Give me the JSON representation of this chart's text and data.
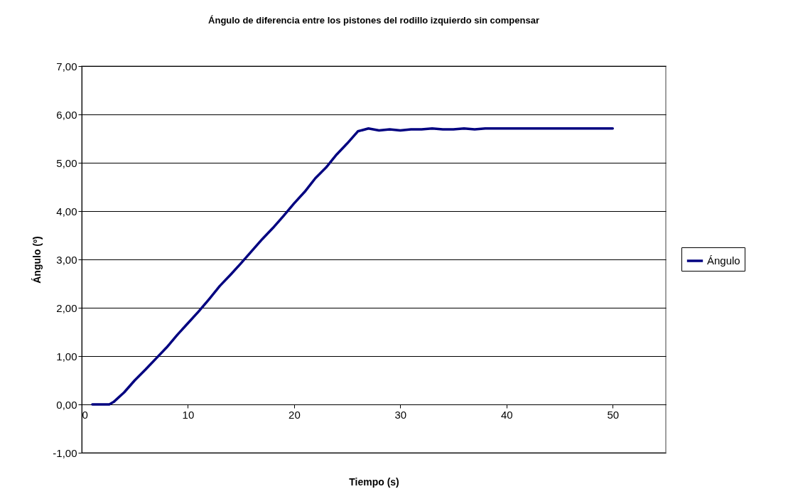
{
  "chart_data": {
    "type": "line",
    "title": "Ángulo de diferencia entre los pistones del rodillo izquierdo sin compensar",
    "xlabel": "Tiempo (s)",
    "ylabel": "Ángulo (º)",
    "x": [
      1,
      2,
      2.6,
      3,
      4,
      5,
      6,
      7,
      8,
      9,
      10,
      11,
      12,
      13,
      14,
      15,
      16,
      17,
      18,
      19,
      20,
      21,
      22,
      23,
      24,
      25,
      26,
      27,
      28,
      29,
      30,
      31,
      32,
      33,
      34,
      35,
      36,
      37,
      38,
      39,
      40,
      41,
      42,
      43,
      44,
      45,
      46,
      47,
      48,
      49,
      50
    ],
    "series": [
      {
        "name": "Ángulo",
        "color": "#000080",
        "values": [
          0,
          0,
          0,
          0.05,
          0.25,
          0.5,
          0.72,
          0.95,
          1.18,
          1.44,
          1.68,
          1.92,
          2.18,
          2.45,
          2.68,
          2.92,
          3.17,
          3.42,
          3.65,
          3.9,
          4.16,
          4.4,
          4.68,
          4.9,
          5.17,
          5.4,
          5.65,
          5.71,
          5.67,
          5.69,
          5.67,
          5.69,
          5.69,
          5.71,
          5.69,
          5.69,
          5.71,
          5.69,
          5.71,
          5.71,
          5.71,
          5.71,
          5.71,
          5.71,
          5.71,
          5.71,
          5.71,
          5.71,
          5.71,
          5.71,
          5.71
        ]
      }
    ],
    "xlim": [
      0,
      55
    ],
    "xticks": [
      0,
      10,
      20,
      30,
      40,
      50
    ],
    "ylim": [
      -1,
      7
    ],
    "yticks": [
      {
        "value": -1,
        "label": "-1,00"
      },
      {
        "value": 0,
        "label": "0,00"
      },
      {
        "value": 1,
        "label": "1,00"
      },
      {
        "value": 2,
        "label": "2,00"
      },
      {
        "value": 3,
        "label": "3,00"
      },
      {
        "value": 4,
        "label": "4,00"
      },
      {
        "value": 5,
        "label": "5,00"
      },
      {
        "value": 6,
        "label": "6,00"
      },
      {
        "value": 7,
        "label": "7,00"
      }
    ],
    "grid": "y",
    "legend": "right",
    "marker": "none",
    "line_style": "solid"
  }
}
